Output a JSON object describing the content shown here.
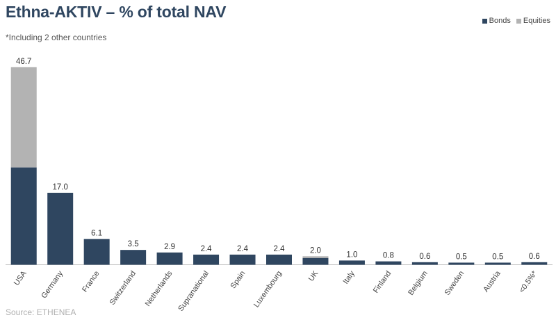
{
  "title": "Ethna-AKTIV – % of total NAV",
  "subtitle": "*Including 2 other countries",
  "source": "Source: ETHENEA",
  "legend": [
    {
      "label": "Bonds",
      "color": "#2f4660"
    },
    {
      "label": "Equities",
      "color": "#b3b3b3"
    }
  ],
  "chart_data": {
    "type": "bar",
    "stacked": true,
    "categories": [
      "USA",
      "Germany",
      "France",
      "Switzerland",
      "Netherlands",
      "Supranational",
      "Spain",
      "Luxembourg",
      "UK",
      "Italy",
      "Finland",
      "Belgium",
      "Sweden",
      "Austria",
      "<0.5%*"
    ],
    "series": [
      {
        "name": "Bonds",
        "color": "#2f4660",
        "values": [
          23.0,
          17.0,
          6.1,
          3.5,
          2.9,
          2.4,
          2.4,
          2.4,
          1.6,
          1.0,
          0.8,
          0.6,
          0.5,
          0.5,
          0.6
        ]
      },
      {
        "name": "Equities",
        "color": "#b3b3b3",
        "values": [
          23.7,
          0,
          0,
          0,
          0,
          0,
          0,
          0,
          0.4,
          0,
          0,
          0,
          0,
          0,
          0
        ]
      }
    ],
    "totals": [
      "46.7",
      "17.0",
      "6.1",
      "3.5",
      "2.9",
      "2.4",
      "2.4",
      "2.4",
      "2.0",
      "1.0",
      "0.8",
      "0.6",
      "0.5",
      "0.5",
      "0.6"
    ],
    "ylim": [
      0,
      47
    ],
    "grid": false,
    "legend_position": "top-right"
  }
}
